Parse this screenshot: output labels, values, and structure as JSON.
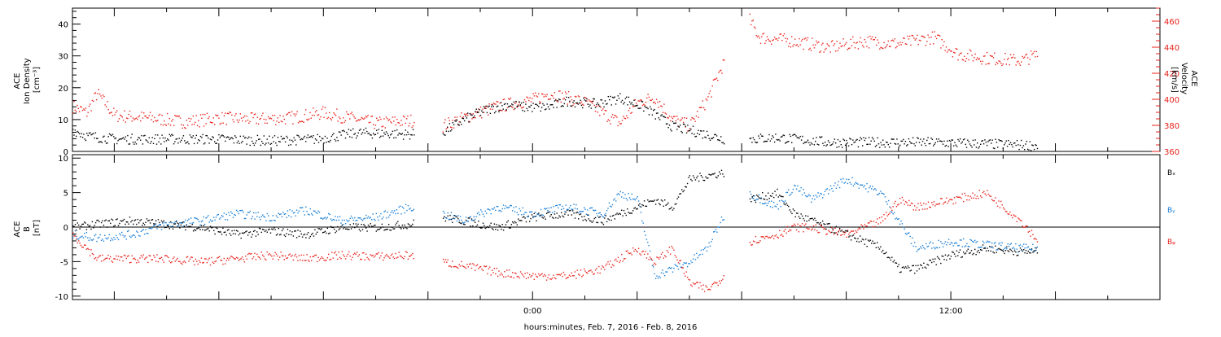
{
  "colors": {
    "black": "#000000",
    "red": "#e8231d",
    "blue": "#1a7fd6"
  },
  "xlabel": "hours:minutes, Feb.  7, 2016 - Feb.  8, 2016",
  "x_axis": {
    "unit": "hours from 2016-02-07 00:00",
    "range": [
      10.8,
      42.0
    ],
    "tick_labels": [
      {
        "t": 24,
        "label": "0:00"
      },
      {
        "t": 36,
        "label": "12:00"
      }
    ]
  },
  "chart_data": [
    {
      "type": "scatter",
      "panel": "top",
      "ylabel_lines": [
        "ACE",
        "Ion Density",
        "[cm⁻³]"
      ],
      "y2label_lines": [
        "ACE",
        "Velocity",
        "[km/s]"
      ],
      "ylim": [
        0,
        45
      ],
      "y2lim": [
        360,
        470
      ],
      "yticks": [
        0,
        10,
        20,
        30,
        40
      ],
      "y2ticks": [
        360,
        380,
        400,
        420,
        440,
        460
      ],
      "gaps": [
        [
          20.6,
          21.4
        ],
        [
          29.5,
          30.2
        ],
        [
          38.8,
          42.0
        ]
      ],
      "series": [
        {
          "axis": "left",
          "color": "black",
          "x": [
            10.8,
            11.2,
            12.0,
            13.5,
            15.0,
            16.5,
            17.8,
            19.0,
            20.5,
            21.4,
            22.0,
            22.6,
            23.3,
            23.8,
            24.4,
            25.0,
            25.8,
            26.5,
            27.2,
            28.0,
            28.8,
            29.5,
            30.2,
            31.0,
            32.5,
            34.0,
            35.5,
            37.0,
            38.5
          ],
          "y": [
            7,
            5,
            4,
            4,
            4,
            3.5,
            4,
            6,
            5.5,
            6,
            10,
            13,
            15,
            14,
            14,
            16,
            15,
            17,
            14,
            8,
            6,
            4,
            4,
            4.5,
            3,
            3,
            3,
            2.5,
            2
          ]
        },
        {
          "axis": "right",
          "color": "red",
          "x": [
            10.8,
            11.2,
            11.5,
            12.0,
            13.0,
            14.0,
            15.0,
            16.0,
            17.0,
            18.0,
            19.5,
            20.5,
            21.4,
            22.0,
            23.0,
            24.0,
            24.5,
            25.5,
            26.5,
            27.0,
            27.5,
            28.0,
            28.5,
            29.0,
            29.5,
            30.2,
            30.5,
            31.5,
            32.5,
            33.5,
            34.5,
            35.5,
            36.2,
            37.0,
            38.0,
            38.5
          ],
          "y": [
            395,
            390,
            405,
            388,
            386,
            383,
            386,
            385,
            386,
            390,
            382,
            384,
            380,
            386,
            395,
            400,
            405,
            398,
            382,
            398,
            402,
            385,
            380,
            400,
            430,
            462,
            448,
            445,
            440,
            445,
            443,
            448,
            435,
            432,
            430,
            435
          ]
        }
      ]
    },
    {
      "type": "scatter",
      "panel": "bottom",
      "ylabel_lines": [
        "ACE",
        "B",
        "[nT]"
      ],
      "ylim": [
        -10.5,
        10.5
      ],
      "yticks": [
        -10,
        -5,
        0,
        5,
        10
      ],
      "zero_line": true,
      "legend": [
        "Bₓ",
        "Bᵧ",
        "Bᵩ"
      ],
      "gaps": [
        [
          20.6,
          21.4
        ],
        [
          29.5,
          30.2
        ],
        [
          38.8,
          42.0
        ]
      ],
      "series": [
        {
          "name": "Bx",
          "color": "black",
          "x": [
            10.8,
            11.5,
            12.5,
            13.5,
            14.5,
            15.5,
            16.5,
            17.5,
            18.5,
            19.5,
            20.5,
            21.4,
            22.0,
            23.0,
            24.0,
            25.0,
            26.0,
            27.0,
            27.5,
            28.0,
            28.5,
            29.0,
            29.5,
            30.2,
            31.0,
            31.5,
            32.0,
            33.0,
            34.0,
            34.5,
            35.0,
            36.0,
            37.0,
            38.0,
            38.5
          ],
          "y": [
            0,
            0.5,
            1,
            0.5,
            0,
            -1,
            -0.5,
            -1,
            0,
            0,
            0.5,
            1.5,
            1,
            0,
            1.5,
            2,
            1,
            3,
            4,
            3,
            7,
            7.5,
            8,
            4,
            5,
            2,
            1,
            -1,
            -3,
            -6,
            -6,
            -4,
            -3,
            -3.5,
            -3.5
          ]
        },
        {
          "name": "By",
          "color": "blue",
          "x": [
            10.8,
            11.5,
            12.5,
            13.5,
            14.5,
            15.5,
            16.5,
            17.5,
            18.5,
            19.5,
            20.5,
            21.4,
            22.0,
            23.0,
            24.0,
            25.0,
            26.0,
            26.5,
            27.0,
            27.5,
            28.0,
            28.5,
            29.0,
            29.5,
            30.2,
            31.0,
            31.5,
            32.0,
            33.0,
            34.0,
            34.5,
            35.0,
            36.0,
            37.0,
            38.0,
            38.5
          ],
          "y": [
            -1,
            -1.5,
            -1,
            0.5,
            1,
            2,
            1.5,
            2.5,
            1,
            1.5,
            3,
            2,
            1,
            3,
            2,
            3,
            2,
            5,
            4,
            -7,
            -6,
            -5,
            -3,
            2,
            5,
            3,
            6,
            4,
            7,
            5,
            1,
            -3,
            -2,
            -2.5,
            -3,
            -3
          ]
        },
        {
          "name": "Bz",
          "color": "red",
          "x": [
            10.8,
            11.5,
            12.5,
            13.5,
            14.5,
            15.5,
            16.5,
            17.5,
            18.5,
            19.5,
            20.5,
            21.4,
            22.0,
            23.0,
            24.0,
            25.0,
            26.0,
            27.0,
            27.5,
            28.0,
            28.5,
            29.0,
            29.5,
            30.2,
            31.0,
            31.5,
            32.0,
            33.0,
            34.0,
            34.5,
            35.0,
            36.0,
            37.0,
            38.0,
            38.5
          ],
          "y": [
            -1,
            -4.5,
            -4.5,
            -4.5,
            -5,
            -4.5,
            -4,
            -4.5,
            -4,
            -4.2,
            -4,
            -5,
            -5.5,
            -6.5,
            -7,
            -7,
            -6,
            -3,
            -5,
            -3,
            -8,
            -9,
            -7,
            -2,
            -1,
            0,
            0,
            -1,
            1,
            4,
            3,
            4,
            5,
            1,
            -2
          ]
        }
      ]
    }
  ]
}
